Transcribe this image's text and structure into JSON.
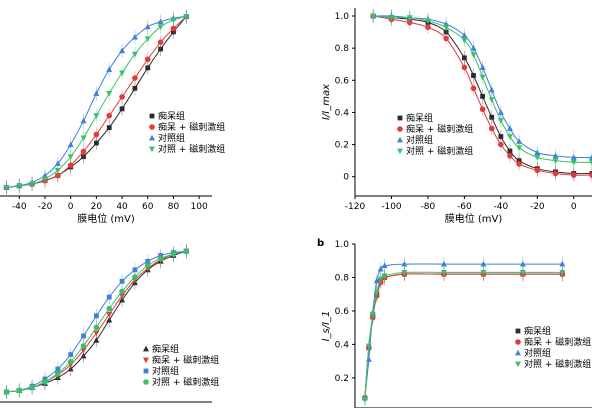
{
  "colors": {
    "AD": "#2b2b2b",
    "AD_TMS": "#e23b3b",
    "Control": "#3f7fd9",
    "Control_TMS": "#3cbf6a"
  },
  "chart_data": [
    {
      "id": "activation-curves",
      "type": "scatter",
      "panel_label": "",
      "xlabel": "膜电位 (mV)",
      "ylabel": "",
      "xlim": [
        -55,
        110
      ],
      "ylim": [
        -0.05,
        1.05
      ],
      "xticks": [
        "-40",
        "-20",
        "0",
        "20",
        "40",
        "60",
        "80",
        "100"
      ],
      "yticks": [],
      "legend": "center-right",
      "series": [
        {
          "name": "痴呆组",
          "key": "AD",
          "marker": "square",
          "x": [
            -50,
            -40,
            -30,
            -20,
            -10,
            0,
            10,
            20,
            30,
            40,
            50,
            60,
            70,
            80,
            90
          ],
          "y": [
            0.0,
            0.01,
            0.02,
            0.04,
            0.07,
            0.12,
            0.18,
            0.26,
            0.35,
            0.46,
            0.58,
            0.7,
            0.81,
            0.91,
            1.0
          ],
          "fit": [
            -50,
            -40,
            -30,
            -20,
            -10,
            0,
            10,
            20,
            30,
            40,
            50,
            60,
            70,
            80,
            90
          ]
        },
        {
          "name": "痴呆 + 磁刺激组",
          "key": "AD_TMS",
          "marker": "circle",
          "x": [
            -50,
            -40,
            -30,
            -20,
            -10,
            0,
            10,
            20,
            30,
            40,
            50,
            60,
            70,
            80,
            90
          ],
          "y": [
            0.0,
            0.01,
            0.02,
            0.04,
            0.07,
            0.13,
            0.21,
            0.31,
            0.42,
            0.53,
            0.64,
            0.75,
            0.85,
            0.93,
            1.0
          ]
        },
        {
          "name": "对照组",
          "key": "Control",
          "marker": "triangle-up",
          "x": [
            -50,
            -40,
            -30,
            -20,
            -10,
            0,
            10,
            20,
            30,
            40,
            50,
            60,
            70,
            80,
            90
          ],
          "y": [
            0.0,
            0.01,
            0.03,
            0.07,
            0.14,
            0.25,
            0.39,
            0.55,
            0.69,
            0.8,
            0.88,
            0.94,
            0.97,
            0.99,
            1.0
          ]
        },
        {
          "name": "对照 + 磁刺激组",
          "key": "Control_TMS",
          "marker": "triangle-down",
          "x": [
            -50,
            -40,
            -30,
            -20,
            -10,
            0,
            10,
            20,
            30,
            40,
            50,
            60,
            70,
            80,
            90
          ],
          "y": [
            0.0,
            0.01,
            0.02,
            0.05,
            0.1,
            0.18,
            0.29,
            0.42,
            0.55,
            0.67,
            0.78,
            0.87,
            0.94,
            0.98,
            1.0
          ]
        }
      ]
    },
    {
      "id": "inactivation-curves",
      "type": "scatter",
      "panel_label": "",
      "xlabel": "膜电位 (mV)",
      "ylabel": "I/I_max",
      "xlim": [
        -120,
        10
      ],
      "ylim": [
        -0.12,
        1.05
      ],
      "xticks": [
        "-120",
        "-100",
        "-80",
        "-60",
        "-40",
        "-20",
        "0"
      ],
      "yticks": [
        "0",
        "0.2",
        "0.4",
        "0.6",
        "0.8",
        "1.0"
      ],
      "legend": "center-left",
      "series": [
        {
          "name": "痴呆组",
          "key": "AD",
          "marker": "square",
          "x": [
            -110,
            -100,
            -90,
            -80,
            -70,
            -60,
            -55,
            -50,
            -45,
            -40,
            -35,
            -30,
            -20,
            -10,
            0,
            10
          ],
          "y": [
            1.0,
            0.99,
            0.98,
            0.96,
            0.9,
            0.74,
            0.63,
            0.5,
            0.37,
            0.25,
            0.16,
            0.1,
            0.05,
            0.03,
            0.02,
            0.02
          ]
        },
        {
          "name": "痴呆 + 磁刺激组",
          "key": "AD_TMS",
          "marker": "circle",
          "x": [
            -110,
            -100,
            -90,
            -80,
            -70,
            -60,
            -55,
            -50,
            -45,
            -40,
            -35,
            -30,
            -20,
            -10,
            0,
            10
          ],
          "y": [
            1.0,
            0.98,
            0.96,
            0.93,
            0.86,
            0.68,
            0.55,
            0.42,
            0.3,
            0.2,
            0.13,
            0.08,
            0.04,
            0.02,
            0.01,
            0.01
          ]
        },
        {
          "name": "对照组",
          "key": "Control",
          "marker": "triangle-up",
          "x": [
            -110,
            -100,
            -90,
            -80,
            -70,
            -60,
            -55,
            -50,
            -45,
            -40,
            -35,
            -30,
            -20,
            -10,
            0,
            10
          ],
          "y": [
            1.0,
            1.0,
            0.99,
            0.98,
            0.95,
            0.88,
            0.8,
            0.68,
            0.54,
            0.4,
            0.3,
            0.22,
            0.15,
            0.13,
            0.12,
            0.12
          ]
        },
        {
          "name": "对照 + 磁刺激组",
          "key": "Control_TMS",
          "marker": "triangle-down",
          "x": [
            -110,
            -100,
            -90,
            -80,
            -70,
            -60,
            -55,
            -50,
            -45,
            -40,
            -35,
            -30,
            -20,
            -10,
            0,
            10
          ],
          "y": [
            1.0,
            0.99,
            0.99,
            0.97,
            0.93,
            0.85,
            0.76,
            0.62,
            0.48,
            0.35,
            0.25,
            0.18,
            0.12,
            0.1,
            0.09,
            0.09
          ]
        }
      ]
    },
    {
      "id": "conductance-curves",
      "type": "scatter",
      "panel_label": "",
      "xlabel": "",
      "ylabel": "",
      "xlim": [
        -55,
        110
      ],
      "ylim": [
        -0.05,
        1.05
      ],
      "xticks": [],
      "yticks": [],
      "legend": "bottom-right",
      "series": [
        {
          "name": "痴呆组",
          "key": "AD",
          "marker": "triangle-up",
          "x": [
            -50,
            -40,
            -30,
            -20,
            -10,
            0,
            10,
            20,
            30,
            40,
            50,
            60,
            70,
            80,
            90
          ],
          "y": [
            0.02,
            0.03,
            0.05,
            0.08,
            0.12,
            0.18,
            0.27,
            0.38,
            0.52,
            0.66,
            0.78,
            0.87,
            0.93,
            0.97,
            1.0
          ]
        },
        {
          "name": "痴呆 + 磁刺激组",
          "key": "AD_TMS",
          "marker": "triangle-down",
          "x": [
            -50,
            -40,
            -30,
            -20,
            -10,
            0,
            10,
            20,
            30,
            40,
            50,
            60,
            70,
            80,
            90
          ],
          "y": [
            0.02,
            0.03,
            0.05,
            0.09,
            0.14,
            0.21,
            0.31,
            0.43,
            0.56,
            0.69,
            0.8,
            0.88,
            0.94,
            0.98,
            1.0
          ]
        },
        {
          "name": "对照组",
          "key": "Control",
          "marker": "square",
          "x": [
            -50,
            -40,
            -30,
            -20,
            -10,
            0,
            10,
            20,
            30,
            40,
            50,
            60,
            70,
            80,
            90
          ],
          "y": [
            0.02,
            0.03,
            0.06,
            0.11,
            0.18,
            0.28,
            0.41,
            0.55,
            0.68,
            0.79,
            0.87,
            0.93,
            0.97,
            0.99,
            1.0
          ]
        },
        {
          "name": "对照 + 磁刺激组",
          "key": "Control_TMS",
          "marker": "circle",
          "x": [
            -50,
            -40,
            -30,
            -20,
            -10,
            0,
            10,
            20,
            30,
            40,
            50,
            60,
            70,
            80,
            90
          ],
          "y": [
            0.02,
            0.03,
            0.05,
            0.09,
            0.15,
            0.23,
            0.34,
            0.47,
            0.6,
            0.72,
            0.82,
            0.9,
            0.95,
            0.98,
            1.0
          ]
        }
      ]
    },
    {
      "id": "time-course",
      "type": "scatter",
      "panel_label": "b",
      "xlabel": "",
      "ylabel": "I_s/I_1",
      "xlim": [
        -5,
        115
      ],
      "ylim": [
        0.02,
        1.0
      ],
      "xticks": [],
      "yticks": [
        "0.2",
        "0.4",
        "0.6",
        "0.8",
        "1.0"
      ],
      "legend": "bottom-right",
      "series": [
        {
          "name": "痴呆组",
          "key": "AD",
          "marker": "square",
          "x": [
            0,
            2,
            4,
            6,
            8,
            10,
            20,
            40,
            60,
            80,
            100
          ],
          "y": [
            0.08,
            0.38,
            0.57,
            0.7,
            0.78,
            0.8,
            0.82,
            0.82,
            0.82,
            0.82,
            0.82
          ]
        },
        {
          "name": "痴呆 + 磁刺激组",
          "key": "AD_TMS",
          "marker": "circle",
          "x": [
            0,
            2,
            4,
            6,
            8,
            10,
            20,
            40,
            60,
            80,
            100
          ],
          "y": [
            0.08,
            0.38,
            0.56,
            0.69,
            0.77,
            0.8,
            0.82,
            0.82,
            0.82,
            0.82,
            0.82
          ]
        },
        {
          "name": "对照组",
          "key": "Control",
          "marker": "triangle-up",
          "x": [
            0,
            2,
            4,
            6,
            8,
            10,
            20,
            40,
            60,
            80,
            100
          ],
          "y": [
            0.08,
            0.31,
            0.59,
            0.78,
            0.85,
            0.87,
            0.88,
            0.88,
            0.88,
            0.88,
            0.88
          ]
        },
        {
          "name": "对照 + 磁刺激组",
          "key": "Control_TMS",
          "marker": "triangle-down",
          "x": [
            0,
            2,
            4,
            6,
            8,
            10,
            20,
            40,
            60,
            80,
            100
          ],
          "y": [
            0.07,
            0.39,
            0.58,
            0.71,
            0.79,
            0.81,
            0.83,
            0.83,
            0.83,
            0.83,
            0.83
          ]
        }
      ]
    }
  ]
}
